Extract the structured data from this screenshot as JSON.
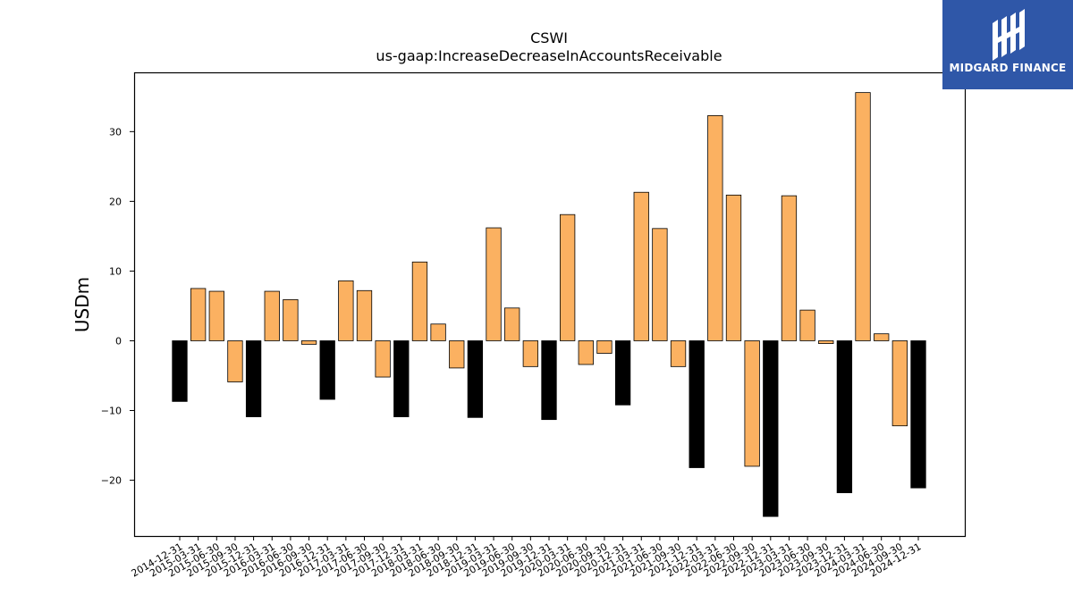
{
  "brand": {
    "name": "MIDGARD FINANCE",
    "color": "#2f57a8"
  },
  "chart_data": {
    "type": "bar",
    "title": "CSWI",
    "subtitle": "us-gaap:IncreaseDecreaseInAccountsReceivable",
    "xlabel": "",
    "ylabel": "USDm",
    "ylim": [
      -28.0,
      38.5
    ],
    "yticks": [
      -20,
      -10,
      0,
      10,
      20,
      30
    ],
    "ytick_labels": [
      "−20",
      "−10",
      "0",
      "10",
      "20",
      "30"
    ],
    "grid": false,
    "colors": {
      "quarterly": "#fbb161",
      "year_end": "#000000",
      "edge": "#000000"
    },
    "categories": [
      "2014-12-31",
      "2015-03-31",
      "2015-06-30",
      "2015-09-30",
      "2015-12-31",
      "2016-03-31",
      "2016-06-30",
      "2016-09-30",
      "2016-12-31",
      "2017-03-31",
      "2017-06-30",
      "2017-09-30",
      "2017-12-31",
      "2018-03-31",
      "2018-06-30",
      "2018-09-30",
      "2018-12-31",
      "2019-03-31",
      "2019-06-30",
      "2019-09-30",
      "2019-12-31",
      "2020-03-31",
      "2020-06-30",
      "2020-09-30",
      "2020-12-31",
      "2021-03-31",
      "2021-06-30",
      "2021-09-30",
      "2021-12-31",
      "2022-03-31",
      "2022-06-30",
      "2022-09-30",
      "2022-12-31",
      "2023-03-31",
      "2023-06-30",
      "2023-09-30",
      "2023-12-31",
      "2024-03-31",
      "2024-06-30",
      "2024-09-30",
      "2024-12-31"
    ],
    "values": [
      -8.7,
      7.5,
      7.1,
      -5.9,
      -10.9,
      7.1,
      5.9,
      -0.5,
      -8.4,
      8.6,
      7.2,
      -5.2,
      -10.9,
      11.3,
      2.4,
      -3.9,
      -11.0,
      16.2,
      4.7,
      -3.7,
      -11.3,
      18.1,
      -3.4,
      -1.8,
      -9.2,
      21.3,
      16.1,
      -3.7,
      -18.2,
      32.3,
      20.9,
      -18.0,
      -25.2,
      20.8,
      4.4,
      -0.4,
      -21.8,
      35.6,
      1.0,
      -12.2,
      -21.1
    ],
    "year_end": [
      true,
      false,
      false,
      false,
      true,
      false,
      false,
      false,
      true,
      false,
      false,
      false,
      true,
      false,
      false,
      false,
      true,
      false,
      false,
      false,
      true,
      false,
      false,
      false,
      true,
      false,
      false,
      false,
      true,
      false,
      false,
      false,
      true,
      false,
      false,
      false,
      true,
      false,
      false,
      false,
      true
    ]
  }
}
